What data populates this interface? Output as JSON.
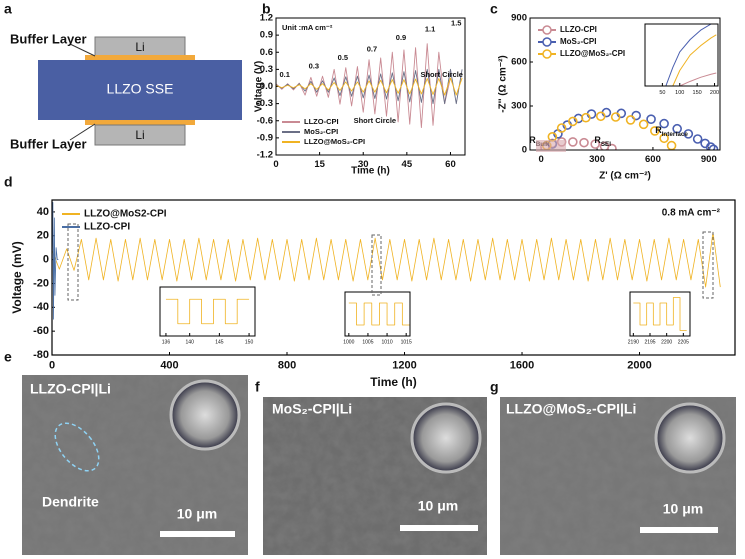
{
  "panel_labels": [
    "a",
    "b",
    "c",
    "d",
    "e",
    "f",
    "g"
  ],
  "diagram": {
    "top_label": "Buffer Layer",
    "bottom_label": "Buffer Layer",
    "top_electrode": "Li",
    "bottom_electrode": "Li",
    "electrolyte": "LLZO SSE"
  },
  "chart_data": [
    {
      "type": "line",
      "xlabel": "Time (h)",
      "ylabel": "Voltage (V)",
      "note": "Unit :mA cm⁻²",
      "xlim": [
        0,
        65
      ],
      "ylim": [
        -1.2,
        1.2
      ],
      "xticks": [
        0,
        15,
        30,
        45,
        60
      ],
      "yticks": [
        1.2,
        0.9,
        0.6,
        0.3,
        {
          "value": 0,
          "label": "0.0"
        },
        -0.3,
        -0.6,
        -0.9,
        -1.2
      ],
      "series": [
        {
          "name": "LLZO-CPI",
          "color": "#c98a93",
          "x": [
            0,
            2,
            4,
            6,
            8,
            10,
            12,
            14,
            16,
            18,
            20,
            22,
            24,
            26,
            28,
            30,
            32,
            34,
            36,
            38,
            40,
            42,
            44,
            46,
            48,
            50,
            52,
            54,
            56,
            58,
            60,
            62,
            64
          ],
          "values": [
            0.05,
            -0.05,
            0.05,
            -0.06,
            0.06,
            -0.15,
            0.16,
            -0.17,
            0.18,
            -0.19,
            0.3,
            -0.31,
            0.33,
            -0.34,
            0.35,
            -0.45,
            0.47,
            -0.48,
            0.5,
            -0.52,
            0.6,
            -0.62,
            0.64,
            -0.66,
            0.68,
            -0.72,
            0.75,
            -0.68,
            0.6,
            -0.3,
            0.15,
            null,
            null
          ]
        },
        {
          "name": "MoS₂-CPI",
          "color": "#6b6f86",
          "x": [
            0,
            2,
            4,
            6,
            8,
            10,
            12,
            14,
            16,
            18,
            20,
            22,
            24,
            26,
            28,
            30,
            32,
            34,
            36,
            38,
            40,
            42,
            44,
            46,
            48,
            50,
            52,
            54,
            56,
            58,
            60,
            62,
            64
          ],
          "values": [
            0.03,
            -0.03,
            0.04,
            -0.04,
            0.05,
            -0.08,
            0.09,
            -0.1,
            0.1,
            -0.1,
            0.15,
            -0.16,
            0.17,
            -0.17,
            0.18,
            -0.2,
            0.2,
            -0.21,
            0.22,
            -0.22,
            0.24,
            -0.25,
            0.26,
            -0.27,
            0.28,
            -0.28,
            0.3,
            -0.3,
            0.3,
            -0.3,
            0.3,
            -0.3,
            0.3
          ]
        },
        {
          "name": "LLZO@MoS₂-CPI",
          "color": "#f0b323",
          "x": [
            0,
            2,
            4,
            6,
            8,
            10,
            12,
            14,
            16,
            18,
            20,
            22,
            24,
            26,
            28,
            30,
            32,
            34,
            36,
            38,
            40,
            42,
            44,
            46,
            48,
            50,
            52,
            54,
            56,
            58,
            60,
            62,
            64
          ],
          "values": [
            0.02,
            -0.02,
            0.02,
            -0.02,
            0.03,
            -0.04,
            0.05,
            -0.05,
            0.05,
            -0.06,
            0.07,
            -0.07,
            0.08,
            -0.08,
            0.08,
            -0.1,
            0.1,
            -0.1,
            0.11,
            -0.11,
            0.12,
            -0.12,
            0.12,
            -0.13,
            0.13,
            -0.13,
            0.14,
            -0.14,
            0.14,
            -0.15,
            0.15,
            -0.15,
            0.15
          ]
        }
      ],
      "annotations": [
        {
          "text": "0.1",
          "x": 3,
          "y": 0.2
        },
        {
          "text": "0.3",
          "x": 13,
          "y": 0.35
        },
        {
          "text": "0.5",
          "x": 23,
          "y": 0.5
        },
        {
          "text": "0.7",
          "x": 33,
          "y": 0.65
        },
        {
          "text": "0.9",
          "x": 43,
          "y": 0.85
        },
        {
          "text": "1.1",
          "x": 53,
          "y": 1.0
        },
        {
          "text": "1.5",
          "x": 62,
          "y": 1.1
        },
        {
          "text": "Short Circle",
          "x": 57,
          "y": 0.2
        },
        {
          "text": "Short Circle",
          "x": 34,
          "y": -0.6
        }
      ]
    },
    {
      "type": "scatter",
      "xlabel": "Z' (Ω cm⁻²)",
      "ylabel": "-Z'' (Ω cm⁻²)",
      "xlim": [
        -60,
        960
      ],
      "ylim": [
        0,
        900
      ],
      "xticks": [
        0,
        300,
        600,
        900
      ],
      "yticks": [
        0,
        300,
        600,
        900
      ],
      "series": [
        {
          "name": "LLZO-CPI",
          "color": "#c98a93",
          "x": [
            20,
            60,
            110,
            170,
            230,
            290,
            340,
            380
          ],
          "values": [
            20,
            45,
            55,
            55,
            50,
            40,
            25,
            10
          ]
        },
        {
          "name": "MoS₂-CPI",
          "color": "#4a5fb0",
          "x": [
            60,
            90,
            140,
            200,
            270,
            350,
            430,
            510,
            590,
            660,
            730,
            790,
            840,
            880,
            910,
            925
          ],
          "values": [
            40,
            110,
            170,
            215,
            245,
            255,
            250,
            235,
            210,
            180,
            145,
            110,
            75,
            45,
            20,
            5
          ]
        },
        {
          "name": "LLZO@MoS₂-CPI",
          "color": "#f0b323",
          "x": [
            30,
            60,
            110,
            170,
            240,
            320,
            400,
            480,
            550,
            610,
            660,
            700
          ],
          "values": [
            30,
            90,
            150,
            195,
            220,
            230,
            225,
            205,
            175,
            130,
            80,
            30
          ]
        }
      ],
      "annotations": [
        {
          "text": "R",
          "sub": "Bulk",
          "x": -10,
          "y": 60
        },
        {
          "text": "R",
          "sub": "SEI",
          "x": 330,
          "y": 60
        },
        {
          "text": "R",
          "sub": "Interface",
          "x": 700,
          "y": 130
        }
      ]
    },
    {
      "type": "line",
      "xlim": [
        0,
        210
      ],
      "ylim": [
        0,
        200
      ],
      "xticks": [
        50,
        100,
        150,
        200
      ],
      "series": [
        {
          "color": "#4a5fb0",
          "x": [
            60,
            80,
            100,
            130,
            160,
            190
          ],
          "values": [
            0,
            60,
            110,
            150,
            180,
            200
          ]
        },
        {
          "color": "#f0b323",
          "x": [
            80,
            100,
            130,
            160,
            190,
            205
          ],
          "values": [
            0,
            50,
            100,
            130,
            155,
            165
          ]
        },
        {
          "color": "#c98a93",
          "x": [
            100,
            130,
            160,
            190,
            205
          ],
          "values": [
            0,
            15,
            28,
            38,
            42
          ]
        }
      ]
    },
    {
      "type": "line",
      "xlabel": "Time (h)",
      "ylabel": "Voltage (mV)",
      "note": "0.8 mA cm⁻²",
      "xlim": [
        0,
        2325
      ],
      "ylim": [
        -80,
        50
      ],
      "xticks": [
        0,
        400,
        800,
        1200,
        1600,
        2000
      ],
      "yticks": [
        40,
        20,
        0,
        -20,
        -40,
        -60,
        -80
      ],
      "series": [
        {
          "name": "LLZO@MoS2-CPI",
          "color": "#f0b323",
          "x": [
            0,
            25,
            50,
            75,
            100,
            125,
            150,
            175,
            200,
            225,
            250,
            275,
            300,
            325,
            350,
            375,
            400,
            425,
            450,
            475,
            500,
            525,
            550,
            575,
            600,
            625,
            650,
            675,
            700,
            725,
            750,
            775,
            800,
            825,
            850,
            875,
            900,
            925,
            950,
            975,
            1000,
            1025,
            1050,
            1075,
            1100,
            1125,
            1150,
            1175,
            1200,
            1225,
            1250,
            1275,
            1300,
            1325,
            1350,
            1375,
            1400,
            1425,
            1450,
            1475,
            1500,
            1525,
            1550,
            1575,
            1600,
            1625,
            1650,
            1675,
            1700,
            1725,
            1750,
            1775,
            1800,
            1825,
            1850,
            1875,
            1900,
            1925,
            1950,
            1975,
            2000,
            2025,
            2050,
            2075,
            2100,
            2125,
            2150,
            2175,
            2200,
            2225,
            2250,
            2275
          ],
          "values": [
            8,
            -8,
            9,
            -9,
            17,
            -17,
            18,
            -17,
            17,
            -18,
            17,
            -17,
            18,
            -17,
            17,
            -17,
            17,
            -18,
            17,
            -17,
            18,
            -17,
            17,
            -17,
            17,
            -18,
            17,
            -17,
            18,
            -17,
            17,
            -17,
            17,
            -18,
            17,
            -17,
            18,
            -17,
            17,
            -17,
            17,
            -18,
            17,
            -17,
            18,
            -17,
            17,
            -17,
            17,
            -18,
            17,
            -17,
            18,
            -17,
            17,
            -17,
            17,
            -18,
            17,
            -17,
            18,
            -17,
            17,
            -17,
            17,
            -18,
            17,
            -17,
            18,
            -17,
            17,
            -17,
            17,
            -18,
            17,
            -17,
            18,
            -17,
            17,
            -17,
            17,
            -18,
            17,
            -17,
            18,
            -17,
            17,
            -17,
            17,
            -23,
            23,
            -23
          ]
        },
        {
          "name": "LLZO-CPI",
          "color": "#4a6fa5",
          "x": [
            0,
            3,
            5,
            8,
            10,
            14,
            18,
            22
          ],
          "values": [
            0,
            48,
            -50,
            35,
            -30,
            10,
            0,
            0
          ]
        }
      ]
    },
    {
      "type": "line",
      "xlim": [
        135,
        151
      ],
      "ylim": [
        -4,
        4
      ],
      "xticks": [
        136,
        140,
        145,
        150
      ],
      "series": [
        {
          "color": "#f0b323",
          "x": [
            136,
            138,
            138,
            140,
            140,
            142,
            142,
            144,
            144,
            146,
            146,
            148,
            148,
            150
          ],
          "values": [
            2,
            2,
            -2,
            -2,
            2,
            2,
            -2,
            -2,
            2,
            2,
            -2,
            -2,
            2,
            2
          ]
        }
      ]
    },
    {
      "type": "line",
      "xlim": [
        999,
        1016
      ],
      "ylim": [
        -4,
        4
      ],
      "xticks": [
        1000,
        1005,
        1010,
        1015
      ],
      "series": [
        {
          "color": "#f0b323",
          "x": [
            1000,
            1002,
            1002,
            1004,
            1004,
            1006,
            1006,
            1008,
            1008,
            1010,
            1010,
            1012,
            1012,
            1014,
            1014,
            1016
          ],
          "values": [
            2,
            2,
            -2,
            -2,
            2,
            2,
            -2,
            -2,
            2,
            2,
            -2,
            -2,
            2,
            2,
            -2,
            -2
          ]
        }
      ]
    },
    {
      "type": "line",
      "xlim": [
        2189,
        2207
      ],
      "ylim": [
        -4,
        4
      ],
      "xticks": [
        2190,
        2195,
        2200,
        2205
      ],
      "series": [
        {
          "color": "#f0b323",
          "x": [
            2190,
            2192,
            2192,
            2194,
            2194,
            2196,
            2196,
            2198,
            2198,
            2200,
            2200,
            2202,
            2202,
            2204,
            2204,
            2206
          ],
          "values": [
            2,
            2,
            -2,
            -2,
            2,
            2,
            -2,
            -2,
            2,
            2,
            -2,
            -2,
            3,
            3,
            -3,
            -3
          ]
        }
      ]
    }
  ],
  "images": [
    {
      "label": "LLZO-CPI|Li",
      "annotation": "Dendrite",
      "scale_bar": "10 μm"
    },
    {
      "label": "MoS₂-CPI|Li",
      "scale_bar": "10 μm"
    },
    {
      "label": "LLZO@MoS₂-CPI|Li",
      "scale_bar": "10 μm"
    }
  ]
}
